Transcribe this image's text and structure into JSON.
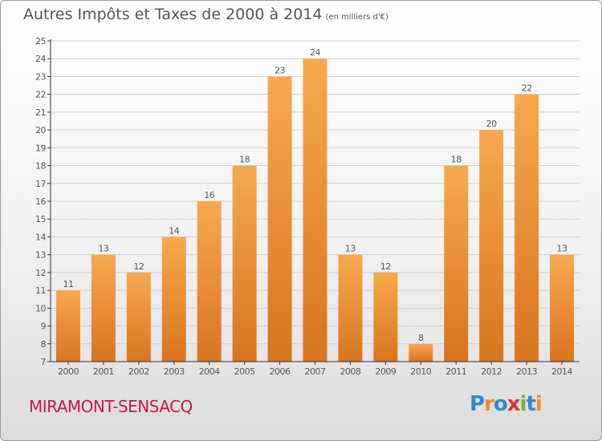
{
  "title": {
    "main": "Autres Impôts et Taxes de 2000 à 2014",
    "unit": "(en milliers d'€)"
  },
  "commune": "MIRAMONT-SENSACQ",
  "logo": {
    "text": "Proxiti",
    "letters": [
      "P",
      "r",
      "o",
      "x",
      "i",
      "t",
      "i"
    ],
    "colors": [
      "#2e8ad8",
      "#f08a1c",
      "#2e8ad8",
      "#e23030",
      "#7ab42a",
      "#2e8ad8",
      "#f08a1c"
    ]
  },
  "colors": {
    "bar_light": "#f7a94e",
    "bar_dark": "#d9741f",
    "text": "#555555",
    "grid": "#cfcfcf",
    "axis": "#333333"
  },
  "chart_data": {
    "type": "bar",
    "title": "Autres Impôts et Taxes de 2000 à 2014",
    "ylabel": "(en milliers d'€)",
    "categories": [
      "2000",
      "2001",
      "2002",
      "2003",
      "2004",
      "2005",
      "2006",
      "2007",
      "2008",
      "2009",
      "2010",
      "2011",
      "2012",
      "2013",
      "2014"
    ],
    "values": [
      11,
      13,
      12,
      14,
      16,
      18,
      23,
      24,
      13,
      12,
      8,
      18,
      20,
      22,
      13
    ],
    "ylim": [
      7,
      25
    ],
    "yticks": [
      7,
      8,
      9,
      10,
      11,
      12,
      13,
      14,
      15,
      16,
      17,
      18,
      19,
      20,
      21,
      22,
      23,
      24,
      25
    ],
    "grid": true,
    "legend": "none"
  }
}
